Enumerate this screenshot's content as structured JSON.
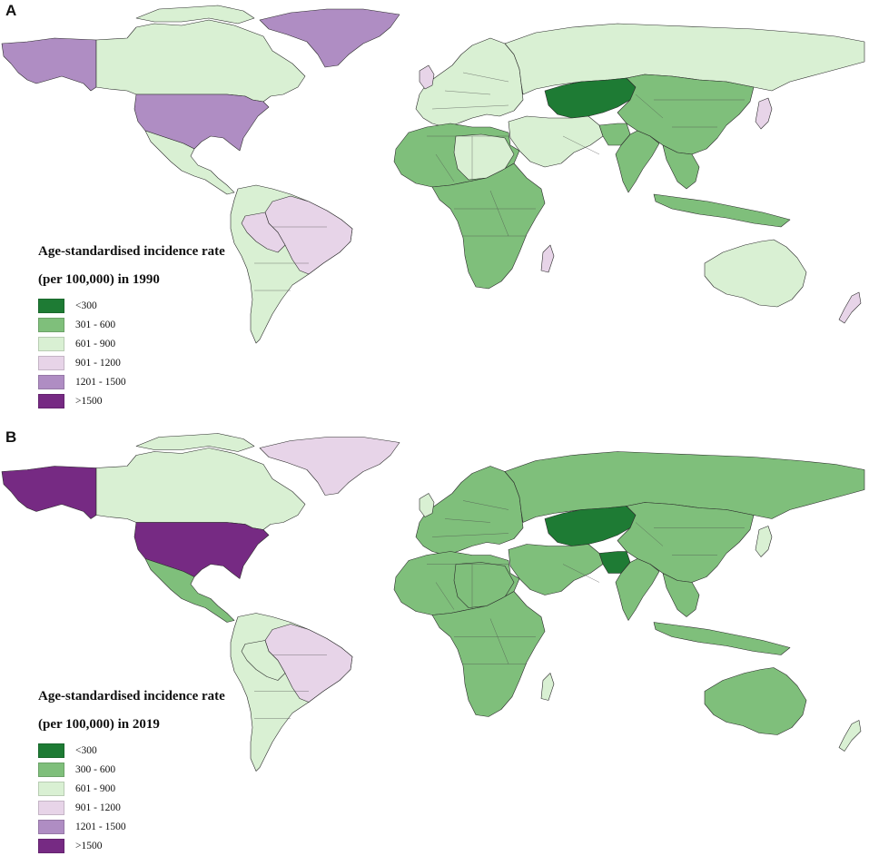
{
  "colors": {
    "lt300": "#1e7b34",
    "c301_600": "#7fbf7b",
    "c601_900": "#d9f0d3",
    "c901_1200": "#e7d4e8",
    "c1201_1500": "#af8dc3",
    "gt1500": "#762a83"
  },
  "panels": [
    {
      "letter": "A",
      "legend_title_line1": "Age-standardised incidence rate",
      "legend_title_line2": "(per 100,000) in 1990",
      "legend_items": [
        {
          "label": "<300",
          "color": "#1e7b34"
        },
        {
          "label": "301 - 600",
          "color": "#7fbf7b"
        },
        {
          "label": "601 - 900",
          "color": "#d9f0d3"
        },
        {
          "label": "901 - 1200",
          "color": "#e7d4e8"
        },
        {
          "label": "1201 - 1500",
          "color": "#af8dc3"
        },
        {
          "label": ">1500",
          "color": "#762a83"
        }
      ],
      "regions": {
        "alaska": "c1201_1500",
        "canada": "c601_900",
        "greenland": "c1201_1500",
        "usa": "c1201_1500",
        "mexico_central_america": "c601_900",
        "south_america": "c601_900",
        "brazil": "c901_1200",
        "bolivia_peru": "c901_1200",
        "europe": "c601_900",
        "uk": "c901_1200",
        "russia": "c601_900",
        "kazakhstan_central_asia": "lt300",
        "china_mongolia": "c301_600",
        "middle_east": "c601_900",
        "pakistan": "c301_600",
        "india": "c301_600",
        "southeast_asia": "c301_600",
        "japan": "c901_1200",
        "north_africa": "c301_600",
        "sahara_east": "c601_900",
        "sub_saharan_africa": "c301_600",
        "madagascar": "c901_1200",
        "australia": "c601_900",
        "new_zealand": "c901_1200"
      }
    },
    {
      "letter": "B",
      "legend_title_line1": "Age-standardised incidence rate",
      "legend_title_line2": "(per 100,000) in 2019",
      "legend_items": [
        {
          "label": "<300",
          "color": "#1e7b34"
        },
        {
          "label": "300 - 600",
          "color": "#7fbf7b"
        },
        {
          "label": "601 - 900",
          "color": "#d9f0d3"
        },
        {
          "label": "901 - 1200",
          "color": "#e7d4e8"
        },
        {
          "label": "1201 - 1500",
          "color": "#af8dc3"
        },
        {
          "label": ">1500",
          "color": "#762a83"
        }
      ],
      "regions": {
        "alaska": "gt1500",
        "canada": "c601_900",
        "greenland": "c901_1200",
        "usa": "gt1500",
        "mexico_central_america": "c301_600",
        "south_america": "c601_900",
        "brazil": "c901_1200",
        "bolivia_peru": "c601_900",
        "europe": "c301_600",
        "uk": "c601_900",
        "russia": "c301_600",
        "kazakhstan_central_asia": "lt300",
        "china_mongolia": "c301_600",
        "middle_east": "c301_600",
        "pakistan": "lt300",
        "india": "c301_600",
        "southeast_asia": "c301_600",
        "japan": "c601_900",
        "north_africa": "c301_600",
        "sahara_east": "c301_600",
        "sub_saharan_africa": "c301_600",
        "madagascar": "c601_900",
        "australia": "c301_600",
        "new_zealand": "c601_900"
      }
    }
  ]
}
